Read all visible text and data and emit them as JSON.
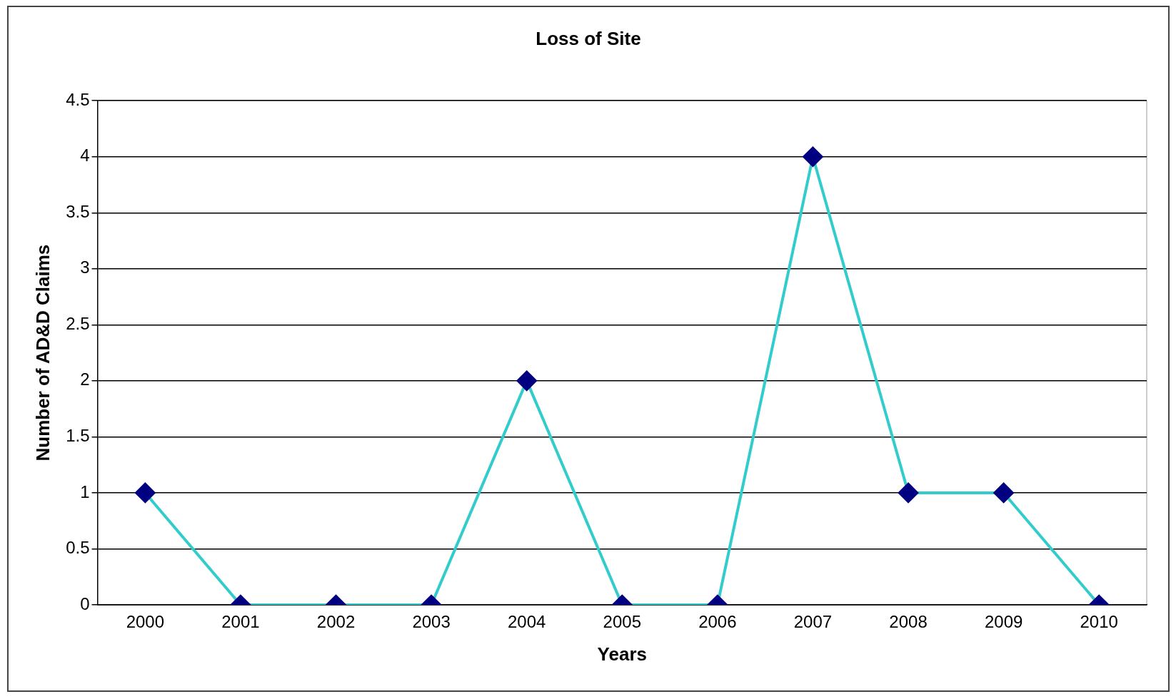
{
  "chart_data": {
    "type": "line",
    "title": "Loss of Site",
    "xlabel": "Years",
    "ylabel": "Number of AD&D Claims",
    "categories": [
      "2000",
      "2001",
      "2002",
      "2003",
      "2004",
      "2005",
      "2006",
      "2007",
      "2008",
      "2009",
      "2010"
    ],
    "values": [
      1,
      0,
      0,
      0,
      2,
      0,
      0,
      4,
      1,
      1,
      0
    ],
    "color": "#33cccc",
    "colors": [
      "#000080",
      "#000080",
      "#000080",
      "#000080",
      "#000080",
      "#000080",
      "#000080",
      "#000080",
      "#000080",
      "#000080",
      "#000080"
    ],
    "ylim": [
      0,
      4.5
    ],
    "yticks": [
      0,
      0.5,
      1,
      1.5,
      2,
      2.5,
      3,
      3.5,
      4,
      4.5
    ],
    "grid": "y",
    "legend": false,
    "marker": "diamond",
    "line_style": "solid"
  }
}
